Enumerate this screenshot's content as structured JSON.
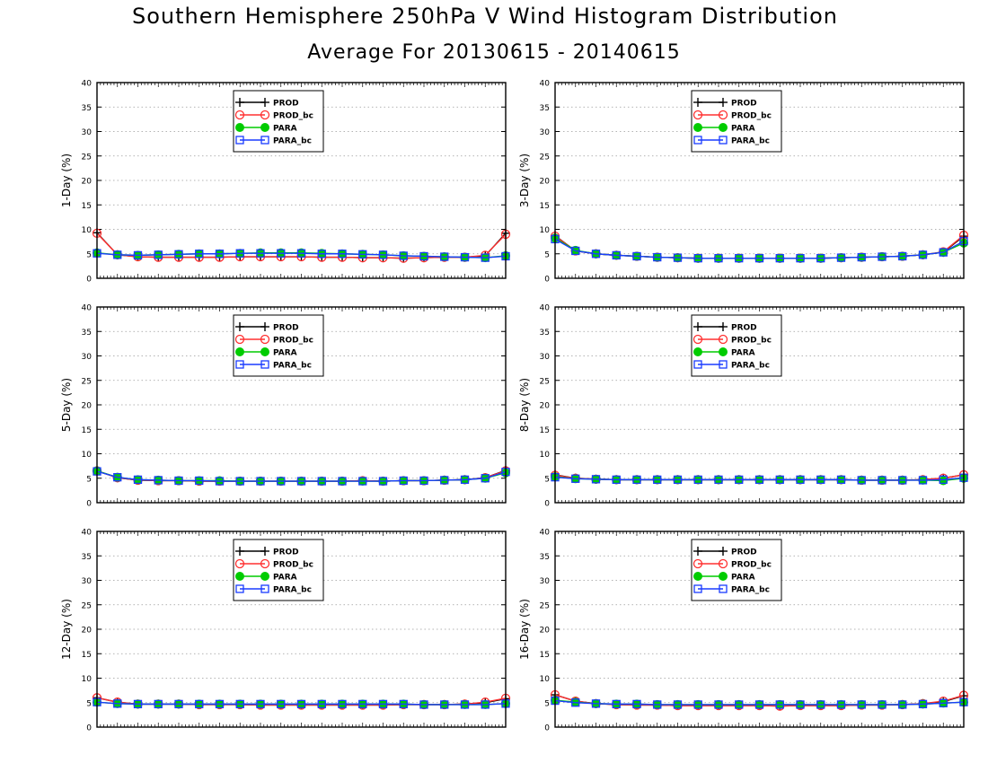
{
  "figure": {
    "title": "Southern Hemisphere 250hPa V Wind Histogram Distribution",
    "subtitle": "Average For 20130615 - 20140615"
  },
  "colors": {
    "PROD": "#000000",
    "PROD_bc": "#ff3030",
    "PARA": "#00cc00",
    "PARA_bc": "#1a3cff"
  },
  "chart_data": [
    {
      "type": "line",
      "panel": "1-Day",
      "ylabel": "1-Day (%)",
      "ylim": [
        0,
        40
      ],
      "yticks": [
        0,
        5,
        10,
        15,
        20,
        25,
        30,
        35,
        40
      ],
      "grid": true,
      "legend": "top-center",
      "x": [
        1,
        2,
        3,
        4,
        5,
        6,
        7,
        8,
        9,
        10,
        11,
        12,
        13,
        14,
        15,
        16,
        17,
        18,
        19,
        20,
        21
      ],
      "series": [
        {
          "name": "PROD",
          "values": [
            9.3,
            4.8,
            4.4,
            4.3,
            4.3,
            4.3,
            4.3,
            4.4,
            4.4,
            4.4,
            4.4,
            4.3,
            4.3,
            4.2,
            4.2,
            4.1,
            4.2,
            4.3,
            4.3,
            4.6,
            9.2
          ]
        },
        {
          "name": "PROD_bc",
          "values": [
            9.2,
            4.8,
            4.4,
            4.3,
            4.3,
            4.3,
            4.3,
            4.4,
            4.4,
            4.4,
            4.4,
            4.3,
            4.3,
            4.2,
            4.2,
            4.1,
            4.2,
            4.3,
            4.3,
            4.7,
            9.0
          ]
        },
        {
          "name": "PARA",
          "values": [
            5.2,
            4.8,
            4.7,
            4.8,
            4.9,
            5.0,
            5.0,
            5.1,
            5.2,
            5.2,
            5.2,
            5.1,
            5.0,
            4.9,
            4.8,
            4.6,
            4.5,
            4.4,
            4.3,
            4.2,
            4.6
          ]
        },
        {
          "name": "PARA_bc",
          "values": [
            5.1,
            4.8,
            4.7,
            4.8,
            4.9,
            5.0,
            5.0,
            5.1,
            5.1,
            5.1,
            5.1,
            5.0,
            5.0,
            4.9,
            4.8,
            4.6,
            4.5,
            4.4,
            4.3,
            4.2,
            4.5
          ]
        }
      ]
    },
    {
      "type": "line",
      "panel": "3-Day",
      "ylabel": "3-Day (%)",
      "ylim": [
        0,
        40
      ],
      "yticks": [
        0,
        5,
        10,
        15,
        20,
        25,
        30,
        35,
        40
      ],
      "grid": true,
      "legend": "top-center",
      "x": [
        1,
        2,
        3,
        4,
        5,
        6,
        7,
        8,
        9,
        10,
        11,
        12,
        13,
        14,
        15,
        16,
        17,
        18,
        19,
        20,
        21
      ],
      "series": [
        {
          "name": "PROD",
          "values": [
            8.7,
            5.6,
            5.0,
            4.7,
            4.5,
            4.3,
            4.2,
            4.1,
            4.1,
            4.1,
            4.1,
            4.1,
            4.1,
            4.1,
            4.2,
            4.3,
            4.4,
            4.5,
            4.8,
            5.3,
            8.6
          ]
        },
        {
          "name": "PROD_bc",
          "values": [
            8.6,
            5.6,
            5.0,
            4.7,
            4.5,
            4.3,
            4.2,
            4.1,
            4.1,
            4.1,
            4.1,
            4.1,
            4.1,
            4.1,
            4.2,
            4.3,
            4.4,
            4.5,
            4.8,
            5.4,
            8.8
          ]
        },
        {
          "name": "PARA",
          "values": [
            8.2,
            5.7,
            5.0,
            4.7,
            4.5,
            4.3,
            4.2,
            4.1,
            4.1,
            4.1,
            4.1,
            4.1,
            4.1,
            4.1,
            4.2,
            4.3,
            4.4,
            4.5,
            4.8,
            5.3,
            7.2
          ]
        },
        {
          "name": "PARA_bc",
          "values": [
            8.0,
            5.6,
            5.0,
            4.7,
            4.5,
            4.3,
            4.2,
            4.1,
            4.1,
            4.1,
            4.1,
            4.1,
            4.1,
            4.1,
            4.2,
            4.3,
            4.4,
            4.5,
            4.8,
            5.3,
            7.6
          ]
        }
      ]
    },
    {
      "type": "line",
      "panel": "5-Day",
      "ylabel": "5-Day (%)",
      "ylim": [
        0,
        40
      ],
      "yticks": [
        0,
        5,
        10,
        15,
        20,
        25,
        30,
        35,
        40
      ],
      "grid": true,
      "legend": "top-center",
      "x": [
        1,
        2,
        3,
        4,
        5,
        6,
        7,
        8,
        9,
        10,
        11,
        12,
        13,
        14,
        15,
        16,
        17,
        18,
        19,
        20,
        21
      ],
      "series": [
        {
          "name": "PROD",
          "values": [
            6.5,
            5.1,
            4.6,
            4.5,
            4.5,
            4.4,
            4.4,
            4.4,
            4.4,
            4.4,
            4.4,
            4.4,
            4.4,
            4.5,
            4.4,
            4.5,
            4.5,
            4.6,
            4.7,
            5.1,
            6.6
          ]
        },
        {
          "name": "PROD_bc",
          "values": [
            6.5,
            5.1,
            4.6,
            4.5,
            4.5,
            4.4,
            4.4,
            4.4,
            4.4,
            4.4,
            4.4,
            4.4,
            4.4,
            4.5,
            4.4,
            4.5,
            4.5,
            4.6,
            4.7,
            5.1,
            6.5
          ]
        },
        {
          "name": "PARA",
          "values": [
            6.5,
            5.2,
            4.7,
            4.6,
            4.5,
            4.5,
            4.5,
            4.4,
            4.4,
            4.4,
            4.4,
            4.4,
            4.4,
            4.4,
            4.4,
            4.5,
            4.5,
            4.6,
            4.7,
            5.0,
            6.1
          ]
        },
        {
          "name": "PARA_bc",
          "values": [
            6.4,
            5.2,
            4.7,
            4.6,
            4.5,
            4.5,
            4.4,
            4.4,
            4.4,
            4.4,
            4.4,
            4.4,
            4.4,
            4.4,
            4.4,
            4.5,
            4.5,
            4.6,
            4.7,
            5.0,
            6.3
          ]
        }
      ]
    },
    {
      "type": "line",
      "panel": "8-Day",
      "ylabel": "8-Day (%)",
      "ylim": [
        0,
        40
      ],
      "yticks": [
        0,
        5,
        10,
        15,
        20,
        25,
        30,
        35,
        40
      ],
      "grid": true,
      "legend": "top-center",
      "x": [
        1,
        2,
        3,
        4,
        5,
        6,
        7,
        8,
        9,
        10,
        11,
        12,
        13,
        14,
        15,
        16,
        17,
        18,
        19,
        20,
        21
      ],
      "series": [
        {
          "name": "PROD",
          "values": [
            5.7,
            5.0,
            4.8,
            4.7,
            4.7,
            4.7,
            4.7,
            4.7,
            4.7,
            4.7,
            4.7,
            4.7,
            4.7,
            4.7,
            4.7,
            4.6,
            4.6,
            4.6,
            4.7,
            5.0,
            5.7
          ]
        },
        {
          "name": "PROD_bc",
          "values": [
            5.6,
            5.0,
            4.8,
            4.7,
            4.7,
            4.7,
            4.7,
            4.7,
            4.7,
            4.7,
            4.7,
            4.7,
            4.7,
            4.7,
            4.7,
            4.6,
            4.6,
            4.6,
            4.7,
            5.0,
            5.7
          ]
        },
        {
          "name": "PARA",
          "values": [
            5.3,
            4.9,
            4.8,
            4.7,
            4.7,
            4.7,
            4.7,
            4.7,
            4.7,
            4.7,
            4.7,
            4.7,
            4.7,
            4.7,
            4.7,
            4.6,
            4.6,
            4.6,
            4.6,
            4.5,
            5.0
          ]
        },
        {
          "name": "PARA_bc",
          "values": [
            5.2,
            4.9,
            4.8,
            4.7,
            4.7,
            4.7,
            4.7,
            4.7,
            4.7,
            4.7,
            4.7,
            4.7,
            4.7,
            4.7,
            4.7,
            4.6,
            4.6,
            4.6,
            4.6,
            4.7,
            5.1
          ]
        }
      ]
    },
    {
      "type": "line",
      "panel": "12-Day",
      "ylabel": "12-Day (%)",
      "ylim": [
        0,
        40
      ],
      "yticks": [
        0,
        5,
        10,
        15,
        20,
        25,
        30,
        35,
        40
      ],
      "grid": true,
      "legend": "top-center",
      "x": [
        1,
        2,
        3,
        4,
        5,
        6,
        7,
        8,
        9,
        10,
        11,
        12,
        13,
        14,
        15,
        16,
        17,
        18,
        19,
        20,
        21
      ],
      "series": [
        {
          "name": "PROD",
          "values": [
            6.0,
            5.1,
            4.7,
            4.7,
            4.7,
            4.6,
            4.6,
            4.6,
            4.5,
            4.5,
            4.5,
            4.5,
            4.5,
            4.5,
            4.5,
            4.6,
            4.6,
            4.6,
            4.7,
            5.0,
            5.8
          ]
        },
        {
          "name": "PROD_bc",
          "values": [
            6.0,
            5.1,
            4.7,
            4.7,
            4.7,
            4.6,
            4.6,
            4.6,
            4.5,
            4.5,
            4.5,
            4.5,
            4.5,
            4.5,
            4.5,
            4.6,
            4.6,
            4.6,
            4.7,
            5.1,
            5.9
          ]
        },
        {
          "name": "PARA",
          "values": [
            5.1,
            4.8,
            4.7,
            4.7,
            4.7,
            4.7,
            4.7,
            4.7,
            4.7,
            4.7,
            4.7,
            4.7,
            4.7,
            4.7,
            4.7,
            4.7,
            4.6,
            4.6,
            4.6,
            4.6,
            4.8
          ]
        },
        {
          "name": "PARA_bc",
          "values": [
            5.1,
            4.8,
            4.7,
            4.7,
            4.7,
            4.7,
            4.7,
            4.7,
            4.7,
            4.7,
            4.7,
            4.7,
            4.7,
            4.7,
            4.7,
            4.7,
            4.6,
            4.6,
            4.6,
            4.6,
            4.8
          ]
        }
      ]
    },
    {
      "type": "line",
      "panel": "16-Day",
      "ylabel": "16-Day (%)",
      "ylim": [
        0,
        40
      ],
      "yticks": [
        0,
        5,
        10,
        15,
        20,
        25,
        30,
        35,
        40
      ],
      "grid": true,
      "legend": "top-center",
      "x": [
        1,
        2,
        3,
        4,
        5,
        6,
        7,
        8,
        9,
        10,
        11,
        12,
        13,
        14,
        15,
        16,
        17,
        18,
        19,
        20,
        21
      ],
      "series": [
        {
          "name": "PROD",
          "values": [
            6.6,
            5.3,
            4.8,
            4.6,
            4.5,
            4.5,
            4.4,
            4.4,
            4.4,
            4.4,
            4.4,
            4.3,
            4.4,
            4.4,
            4.4,
            4.5,
            4.5,
            4.6,
            4.8,
            5.2,
            6.4
          ]
        },
        {
          "name": "PROD_bc",
          "values": [
            6.6,
            5.3,
            4.8,
            4.6,
            4.5,
            4.5,
            4.4,
            4.4,
            4.4,
            4.4,
            4.4,
            4.3,
            4.4,
            4.4,
            4.4,
            4.5,
            4.5,
            4.6,
            4.8,
            5.3,
            6.5
          ]
        },
        {
          "name": "PARA",
          "values": [
            5.5,
            5.1,
            4.8,
            4.7,
            4.7,
            4.6,
            4.6,
            4.6,
            4.6,
            4.6,
            4.6,
            4.6,
            4.6,
            4.6,
            4.6,
            4.6,
            4.6,
            4.6,
            4.7,
            4.9,
            5.1
          ]
        },
        {
          "name": "PARA_bc",
          "values": [
            5.4,
            5.0,
            4.8,
            4.7,
            4.7,
            4.6,
            4.6,
            4.6,
            4.6,
            4.6,
            4.6,
            4.6,
            4.6,
            4.6,
            4.6,
            4.6,
            4.6,
            4.6,
            4.7,
            4.9,
            5.1
          ]
        }
      ]
    }
  ]
}
